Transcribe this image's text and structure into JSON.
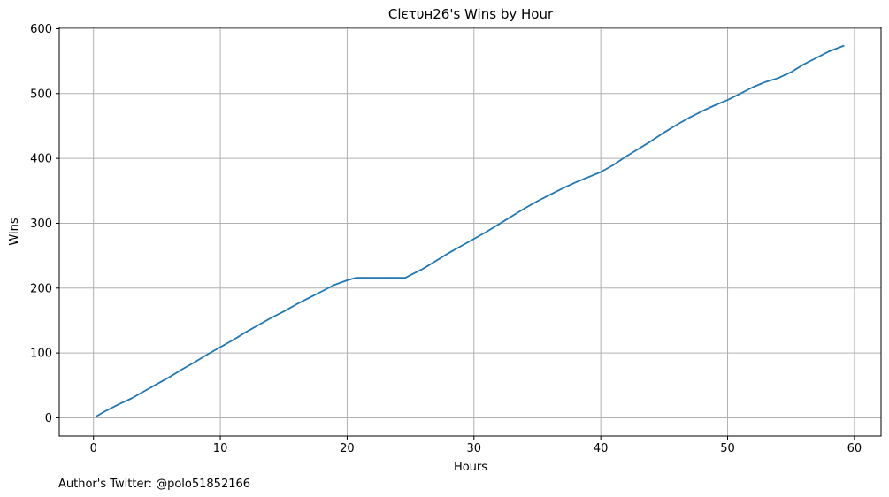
{
  "chart_data": {
    "type": "line",
    "title": "Clєτυн26's Wins by Hour",
    "xlabel": "Hours",
    "ylabel": "Wins",
    "xlim": [
      -2.7,
      62.1
    ],
    "ylim": [
      -28,
      602
    ],
    "xticks": [
      0,
      10,
      20,
      30,
      40,
      50,
      60
    ],
    "yticks": [
      0,
      100,
      200,
      300,
      400,
      500,
      600
    ],
    "grid": true,
    "line_color": "#1f77b4",
    "grid_color": "#b0b0b0",
    "series": [
      {
        "x": [
          0.2,
          1,
          2,
          3,
          4,
          5,
          6,
          7,
          8,
          9,
          10,
          11,
          12,
          13,
          14,
          15,
          16,
          17,
          18,
          19,
          20,
          20.7,
          21,
          22,
          23,
          24,
          24.6,
          25,
          26,
          27,
          28,
          29,
          30,
          31,
          32,
          33,
          34,
          35,
          36,
          37,
          38,
          39,
          40,
          41,
          42,
          43,
          44,
          45,
          46,
          47,
          48,
          49,
          50,
          51,
          52,
          53,
          54,
          55,
          56,
          57,
          58,
          59.2
        ],
        "y": [
          2,
          11,
          21,
          30,
          41,
          52,
          63,
          75,
          86,
          98,
          109,
          120,
          132,
          143,
          154,
          164,
          175,
          185,
          195,
          205,
          212,
          216,
          216,
          216,
          216,
          216,
          216,
          220,
          230,
          242,
          254,
          265,
          276,
          287,
          299,
          311,
          323,
          334,
          344,
          354,
          363,
          371,
          379,
          390,
          403,
          415,
          427,
          440,
          452,
          463,
          473,
          482,
          490,
          500,
          510,
          518,
          524,
          533,
          545,
          555,
          565,
          574
        ]
      }
    ]
  },
  "footer": {
    "text": "Author's Twitter: @polo51852166"
  }
}
